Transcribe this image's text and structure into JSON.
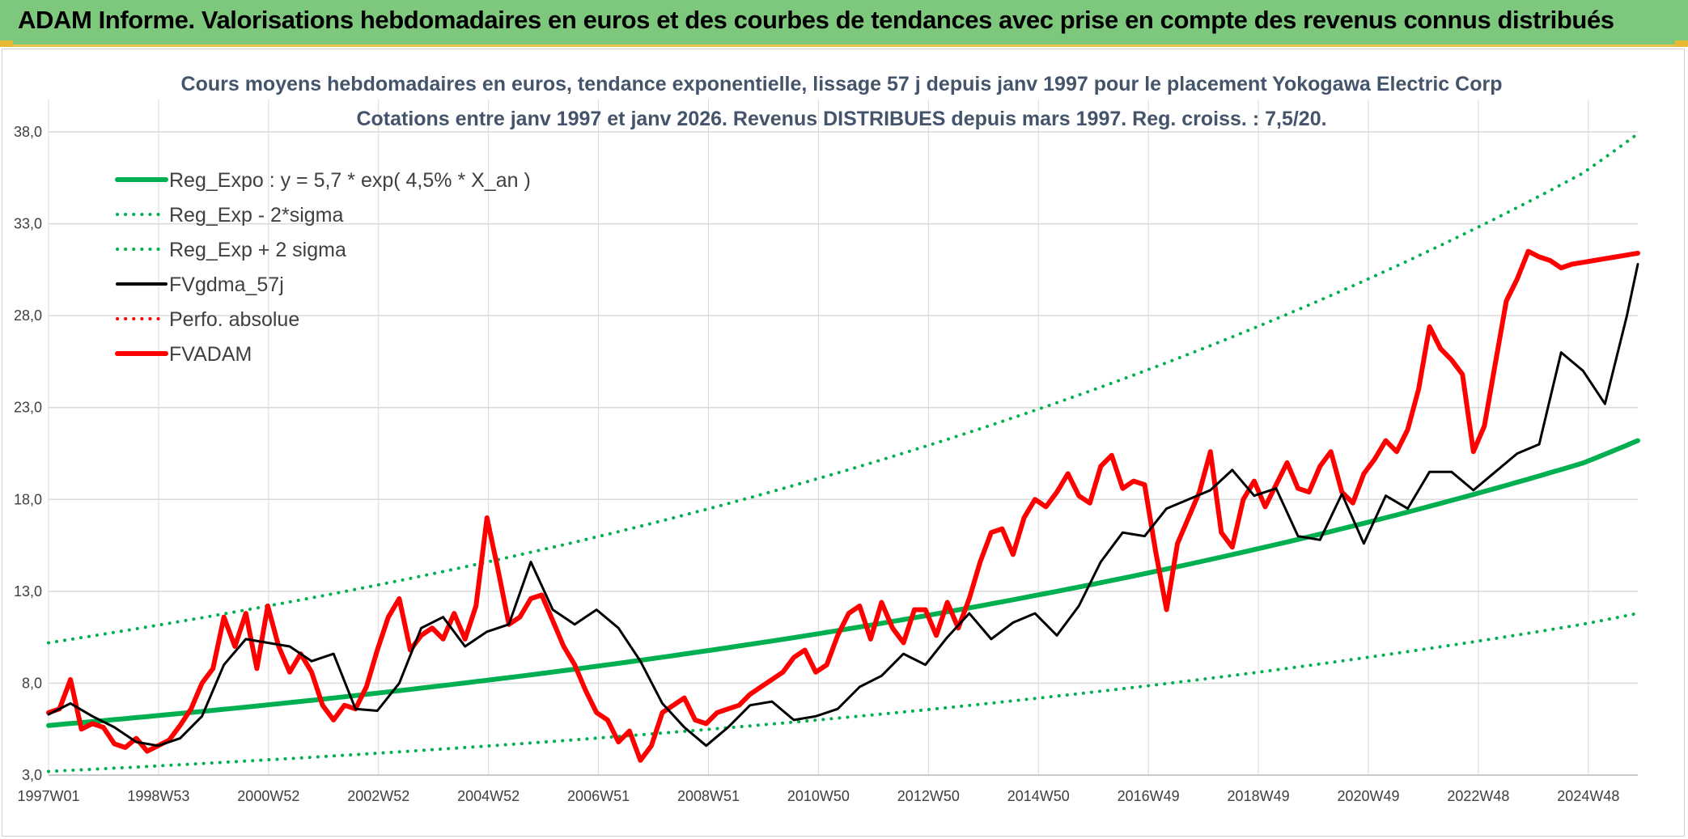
{
  "header": {
    "title": "ADAM Informe. Valorisations hebdomadaires en euros et des courbes de tendances avec prise en compte des revenus connus distribués"
  },
  "colors": {
    "banner": "#7ec87e",
    "reg_expo": "#00b050",
    "fvgdma": "#000000",
    "fvadam": "#ff0000",
    "grid": "#d9d9d9"
  },
  "chart_data": {
    "type": "line",
    "title": "Cours moyens hebdomadaires en euros, tendance exponentielle, lissage 57 j depuis janv 1997 pour le placement Yokogawa Electric Corp",
    "subtitle": "Cotations entre janv 1997 et janv 2026. Revenus DISTRIBUES depuis mars 1997. Reg. croiss. : 7,5/20.",
    "xlabel": "",
    "ylabel": "",
    "x_ticks": [
      "1997W01",
      "1998W53",
      "2000W52",
      "2002W52",
      "2004W52",
      "2006W51",
      "2008W51",
      "2010W50",
      "2012W50",
      "2014W50",
      "2016W49",
      "2018W49",
      "2020W49",
      "2022W48",
      "2024W48"
    ],
    "y_ticks": [
      "3,0",
      "8,0",
      "13,0",
      "18,0",
      "23,0",
      "28,0",
      "33,0",
      "38,0"
    ],
    "ylim": [
      3,
      38
    ],
    "xlim": [
      1997.0,
      2026.0
    ],
    "grid": true,
    "legend_position": "top-left",
    "series": [
      {
        "name": "Reg_Expo : y = 5,7 * exp( 4,5% *  X_an )",
        "style": "solid-thick",
        "color": "#00b050",
        "x": [
          1997,
          1999,
          2001,
          2003,
          2005,
          2007,
          2009,
          2011,
          2013,
          2015,
          2017,
          2019,
          2021,
          2023,
          2025,
          2026
        ],
        "values": [
          5.7,
          6.24,
          6.82,
          7.46,
          8.16,
          8.92,
          9.76,
          10.67,
          11.67,
          12.77,
          13.96,
          15.27,
          16.7,
          18.27,
          19.98,
          21.2
        ]
      },
      {
        "name": "Reg_Exp - 2*sigma",
        "style": "dotted",
        "color": "#00b050",
        "x": [
          1997,
          1999,
          2001,
          2003,
          2005,
          2007,
          2009,
          2011,
          2013,
          2015,
          2017,
          2019,
          2021,
          2023,
          2025,
          2026
        ],
        "values": [
          3.2,
          3.5,
          3.83,
          4.19,
          4.58,
          5.01,
          5.48,
          5.99,
          6.55,
          7.17,
          7.84,
          8.57,
          9.38,
          10.25,
          11.21,
          11.8
        ]
      },
      {
        "name": "Reg_Exp + 2 sigma",
        "style": "dotted",
        "color": "#00b050",
        "x": [
          1997,
          1999,
          2001,
          2003,
          2005,
          2007,
          2009,
          2011,
          2013,
          2015,
          2017,
          2019,
          2021,
          2023,
          2025,
          2026
        ],
        "values": [
          10.2,
          11.16,
          12.2,
          13.34,
          14.59,
          15.96,
          17.46,
          19.1,
          20.89,
          22.85,
          24.99,
          27.33,
          29.89,
          32.69,
          35.76,
          37.9
        ]
      },
      {
        "name": "FVgdma_57j",
        "style": "solid",
        "color": "#000000",
        "x": [
          1997.0,
          1997.4,
          1997.8,
          1998.2,
          1998.6,
          1999.0,
          1999.4,
          1999.8,
          2000.2,
          2000.6,
          2001.0,
          2001.4,
          2001.8,
          2002.2,
          2002.6,
          2003.0,
          2003.4,
          2003.8,
          2004.2,
          2004.6,
          2005.0,
          2005.4,
          2005.8,
          2006.2,
          2006.6,
          2007.0,
          2007.4,
          2007.8,
          2008.2,
          2008.6,
          2009.0,
          2009.4,
          2009.8,
          2010.2,
          2010.6,
          2011.0,
          2011.4,
          2011.8,
          2012.2,
          2012.6,
          2013.0,
          2013.4,
          2013.8,
          2014.2,
          2014.6,
          2015.0,
          2015.4,
          2015.8,
          2016.2,
          2016.6,
          2017.0,
          2017.4,
          2017.8,
          2018.2,
          2018.6,
          2019.0,
          2019.4,
          2019.8,
          2020.2,
          2020.6,
          2021.0,
          2021.4,
          2021.8,
          2022.2,
          2022.6,
          2023.0,
          2023.4,
          2023.8,
          2024.2,
          2024.6,
          2025.0,
          2025.4,
          2025.8,
          2026.0
        ],
        "values": [
          6.3,
          6.9,
          6.2,
          5.6,
          4.8,
          4.6,
          5.0,
          6.2,
          9.0,
          10.4,
          10.2,
          10.0,
          9.2,
          9.6,
          6.6,
          6.5,
          8.0,
          11.0,
          11.6,
          10.0,
          10.8,
          11.2,
          14.6,
          12.0,
          11.2,
          12.0,
          11.0,
          9.2,
          6.9,
          5.6,
          4.6,
          5.6,
          6.8,
          7.0,
          6.0,
          6.2,
          6.6,
          7.8,
          8.4,
          9.6,
          9.0,
          10.5,
          11.8,
          10.4,
          11.3,
          11.8,
          10.6,
          12.2,
          14.6,
          16.2,
          16.0,
          17.5,
          18.0,
          18.5,
          19.6,
          18.2,
          18.6,
          16.0,
          15.8,
          18.3,
          15.6,
          18.2,
          17.5,
          19.5,
          19.5,
          18.5,
          19.5,
          20.5,
          21.0,
          26.0,
          25.0,
          23.2,
          28.0,
          30.8
        ]
      },
      {
        "name": "Perfo. absolue",
        "style": "dotted",
        "color": "#ff0000",
        "x": [],
        "values": []
      },
      {
        "name": "FVADAM",
        "style": "solid-thick",
        "color": "#ff0000",
        "x": [
          1997.0,
          1997.2,
          1997.4,
          1997.6,
          1997.8,
          1998.0,
          1998.2,
          1998.4,
          1998.6,
          1998.8,
          1999.0,
          1999.2,
          1999.4,
          1999.6,
          1999.8,
          2000.0,
          2000.2,
          2000.4,
          2000.6,
          2000.8,
          2001.0,
          2001.2,
          2001.4,
          2001.6,
          2001.8,
          2002.0,
          2002.2,
          2002.4,
          2002.6,
          2002.8,
          2003.0,
          2003.2,
          2003.4,
          2003.6,
          2003.8,
          2004.0,
          2004.2,
          2004.4,
          2004.6,
          2004.8,
          2005.0,
          2005.2,
          2005.4,
          2005.6,
          2005.8,
          2006.0,
          2006.2,
          2006.4,
          2006.6,
          2006.8,
          2007.0,
          2007.2,
          2007.4,
          2007.6,
          2007.8,
          2008.0,
          2008.2,
          2008.4,
          2008.6,
          2008.8,
          2009.0,
          2009.2,
          2009.4,
          2009.6,
          2009.8,
          2010.0,
          2010.2,
          2010.4,
          2010.6,
          2010.8,
          2011.0,
          2011.2,
          2011.4,
          2011.6,
          2011.8,
          2012.0,
          2012.2,
          2012.4,
          2012.6,
          2012.8,
          2013.0,
          2013.2,
          2013.4,
          2013.6,
          2013.8,
          2014.0,
          2014.2,
          2014.4,
          2014.6,
          2014.8,
          2015.0,
          2015.2,
          2015.4,
          2015.6,
          2015.8,
          2016.0,
          2016.2,
          2016.4,
          2016.6,
          2016.8,
          2017.0,
          2017.2,
          2017.4,
          2017.6,
          2017.8,
          2018.0,
          2018.2,
          2018.4,
          2018.6,
          2018.8,
          2019.0,
          2019.2,
          2019.4,
          2019.6,
          2019.8,
          2020.0,
          2020.2,
          2020.4,
          2020.6,
          2020.8,
          2021.0,
          2021.2,
          2021.4,
          2021.6,
          2021.8,
          2022.0,
          2022.2,
          2022.4,
          2022.6,
          2022.8,
          2023.0,
          2023.2,
          2023.4,
          2023.6,
          2023.8,
          2024.0,
          2024.2,
          2024.4,
          2024.6,
          2024.8,
          2025.0,
          2025.2,
          2025.4,
          2025.6,
          2025.8,
          2026.0
        ],
        "values": [
          6.4,
          6.6,
          8.2,
          5.5,
          5.8,
          5.6,
          4.7,
          4.5,
          5.0,
          4.3,
          4.6,
          4.9,
          5.7,
          6.6,
          8.0,
          8.8,
          11.6,
          10.0,
          11.8,
          8.8,
          12.2,
          10.0,
          8.6,
          9.6,
          8.6,
          6.8,
          6.0,
          6.8,
          6.6,
          7.8,
          9.8,
          11.6,
          12.6,
          9.8,
          10.6,
          11.0,
          10.4,
          11.8,
          10.4,
          12.2,
          17.0,
          14.2,
          11.2,
          11.6,
          12.6,
          12.8,
          11.4,
          10.0,
          9.0,
          7.6,
          6.4,
          6.0,
          4.8,
          5.4,
          3.8,
          4.6,
          6.4,
          6.8,
          7.2,
          6.0,
          5.8,
          6.4,
          6.6,
          6.8,
          7.4,
          7.8,
          8.2,
          8.6,
          9.4,
          9.8,
          8.6,
          9.0,
          10.6,
          11.8,
          12.2,
          10.4,
          12.4,
          11.0,
          10.2,
          12.0,
          12.0,
          10.6,
          12.4,
          11.0,
          12.6,
          14.6,
          16.2,
          16.4,
          15.0,
          17.0,
          18.0,
          17.6,
          18.4,
          19.4,
          18.2,
          17.8,
          19.8,
          20.4,
          18.6,
          19.0,
          18.8,
          15.2,
          12.0,
          15.6,
          17.0,
          18.4,
          20.6,
          16.2,
          15.4,
          18.0,
          19.0,
          17.6,
          18.8,
          20.0,
          18.6,
          18.4,
          19.8,
          20.6,
          18.4,
          17.8,
          19.4,
          20.2,
          21.2,
          20.6,
          21.8,
          24.0,
          27.4,
          26.2,
          25.6,
          24.8,
          20.6,
          22.0,
          25.4,
          28.8,
          30.0,
          31.5,
          31.2,
          31.0,
          30.6,
          30.8,
          30.9,
          31.0,
          31.1,
          31.2,
          31.3,
          31.4
        ]
      }
    ]
  }
}
